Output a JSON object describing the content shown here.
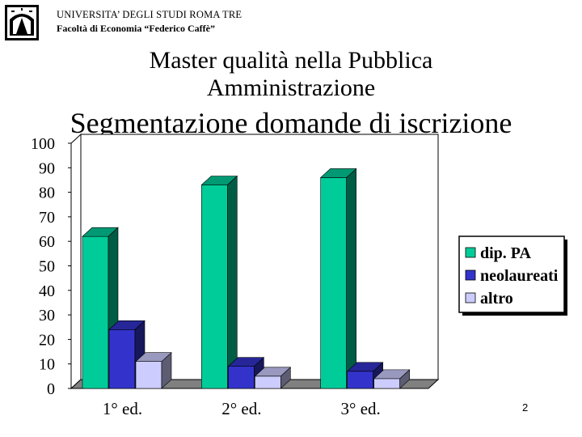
{
  "header": {
    "university": "UNIVERSITA’ DEGLI STUDI ROMA TRE",
    "faculty": "Facoltà di Economia “Federico Caffè”"
  },
  "master_title": {
    "line1": "Master qualità nella Pubblica",
    "line2": "Amministrazione"
  },
  "slide_title": "Segmentazione domande di iscrizione",
  "page_number": "2",
  "logo_icon": "university-logo-icon",
  "chart_data": {
    "type": "bar",
    "title": "",
    "xlabel": "",
    "ylabel": "",
    "categories": [
      "1° ed.",
      "2° ed.",
      "3° ed."
    ],
    "series": [
      {
        "name": "dip. PA",
        "values": [
          62,
          83,
          86
        ],
        "color": "#00cc99"
      },
      {
        "name": "neolaureati",
        "values": [
          24,
          9,
          7
        ],
        "color": "#3333cc"
      },
      {
        "name": "altro",
        "values": [
          11,
          5,
          4
        ],
        "color": "#ccccff"
      }
    ],
    "yticks": [
      "0",
      "10",
      "20",
      "30",
      "40",
      "50",
      "60",
      "70",
      "80",
      "90",
      "100"
    ],
    "ylim": [
      0,
      100
    ],
    "grid": false,
    "legend_position": "right",
    "style": "3d-bar"
  }
}
